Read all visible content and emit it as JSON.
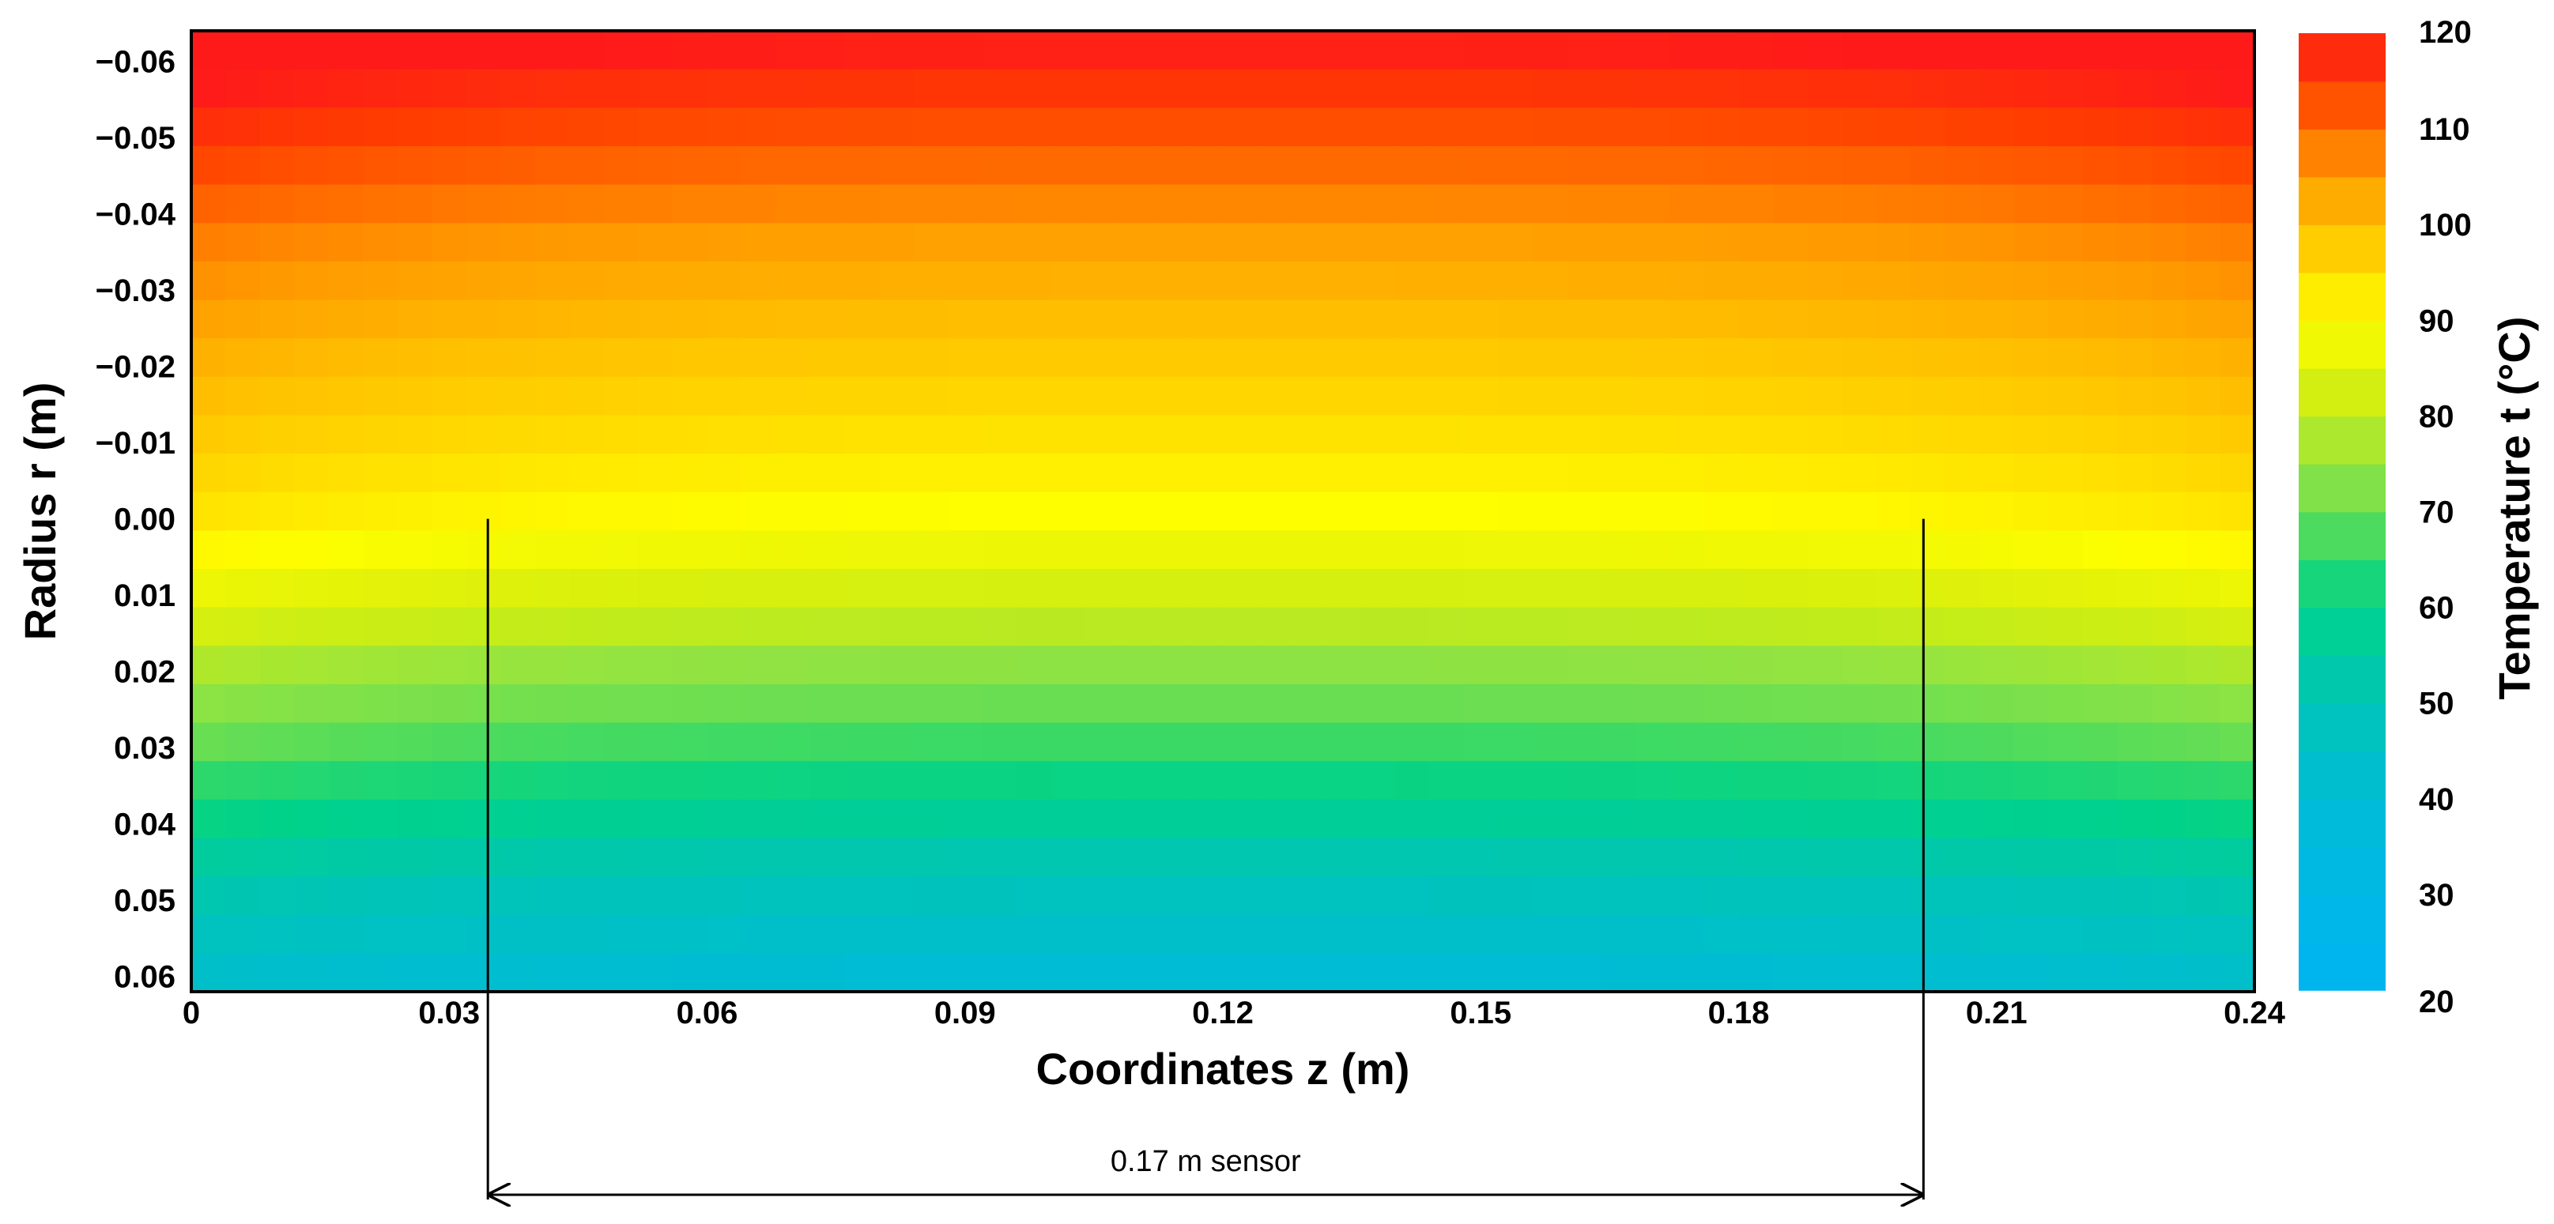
{
  "chart_data": {
    "type": "heatmap",
    "xlabel": "Coordinates z (m)",
    "ylabel": "Radius r (m)",
    "colorbar_label": "Temperature t (°C)",
    "xlim": [
      0,
      0.24
    ],
    "ylim": [
      -0.064,
      0.062
    ],
    "x_ticks": [
      "0",
      "0.03",
      "0.06",
      "0.09",
      "0.12",
      "0.15",
      "0.18",
      "0.21",
      "0.24"
    ],
    "x_tick_values": [
      0,
      0.03,
      0.06,
      0.09,
      0.12,
      0.15,
      0.18,
      0.21,
      0.24
    ],
    "y_ticks": [
      "−0.06",
      "−0.05",
      "−0.04",
      "−0.03",
      "−0.02",
      "−0.01",
      "0.00",
      "0.01",
      "0.02",
      "0.03",
      "0.04",
      "0.05",
      "0.06"
    ],
    "y_tick_values": [
      -0.06,
      -0.05,
      -0.04,
      -0.03,
      -0.02,
      -0.01,
      0.0,
      0.01,
      0.02,
      0.03,
      0.04,
      0.05,
      0.06
    ],
    "colorbar_ticks": [
      "120",
      "110",
      "100",
      "90",
      "80",
      "70",
      "60",
      "50",
      "40",
      "30",
      "20"
    ],
    "colorbar_tick_values": [
      120,
      110,
      100,
      90,
      80,
      70,
      60,
      50,
      40,
      30,
      20
    ],
    "colorbar_range": [
      20,
      120
    ],
    "colorscale": [
      [
        20,
        "#00b4f0"
      ],
      [
        30,
        "#00b8e6"
      ],
      [
        40,
        "#00bcd4"
      ],
      [
        50,
        "#00c4b8"
      ],
      [
        60,
        "#00d28a"
      ],
      [
        65,
        "#2ed86a"
      ],
      [
        70,
        "#6ade52"
      ],
      [
        75,
        "#96e440"
      ],
      [
        80,
        "#c2ec1a"
      ],
      [
        85,
        "#e2f208"
      ],
      [
        90,
        "#fefe00"
      ],
      [
        95,
        "#ffdc00"
      ],
      [
        100,
        "#ffbe00"
      ],
      [
        105,
        "#ff9a00"
      ],
      [
        110,
        "#ff6a00"
      ],
      [
        115,
        "#ff3c00"
      ],
      [
        120,
        "#ff1a1a"
      ]
    ],
    "row_r": [
      -0.0615,
      -0.0565,
      -0.0515,
      -0.0465,
      -0.0415,
      -0.0365,
      -0.0315,
      -0.0265,
      -0.0215,
      -0.0165,
      -0.0115,
      -0.0065,
      -0.0015,
      0.0035,
      0.0085,
      0.0135,
      0.0185,
      0.0235,
      0.0285,
      0.0335,
      0.0385,
      0.0435,
      0.0485,
      0.0535,
      0.0585
    ],
    "row_temperature": [
      119,
      116,
      113,
      110,
      107,
      104,
      102,
      100,
      98,
      96,
      94,
      92,
      90,
      87,
      83,
      79,
      74,
      70,
      66,
      61,
      57,
      52,
      48,
      44,
      40
    ],
    "sensor_start_z": 0.0345,
    "sensor_end_z": 0.2015,
    "sensor_label": "0.17 m sensor"
  }
}
